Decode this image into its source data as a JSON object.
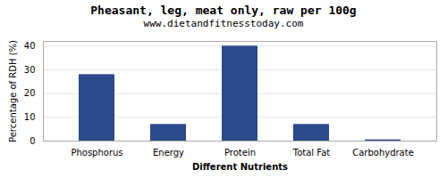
{
  "chart_data": {
    "type": "bar",
    "title": "Pheasant, leg, meat only, raw per 100g",
    "subtitle": "www.dietandfitnesstoday.com",
    "xlabel": "Different Nutrients",
    "ylabel": "Percentage of RDH (%)",
    "categories": [
      "Phosphorus",
      "Energy",
      "Protein",
      "Total Fat",
      "Carbohydrate"
    ],
    "values": [
      28,
      7,
      40,
      7,
      0.5
    ],
    "color": "#2b4a8b",
    "ylim": [
      0,
      42
    ],
    "yticks": [
      0,
      10,
      20,
      30,
      40
    ],
    "grid": true
  }
}
